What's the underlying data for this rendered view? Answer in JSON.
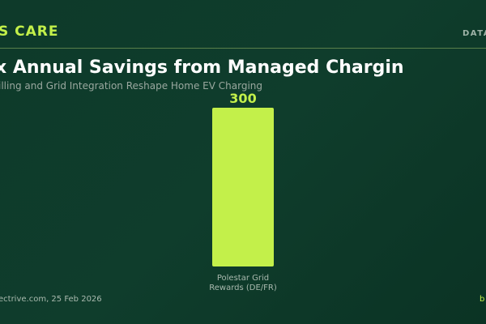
{
  "header": {
    "brand": "S CARE",
    "tag": "DATA"
  },
  "chart_data": {
    "type": "bar",
    "title": "x Annual Savings from Managed Chargin",
    "subtitle": "illing and Grid Integration Reshape Home EV Charging",
    "categories": [
      "Polestar Grid Rewards (DE/FR)"
    ],
    "category_lines": [
      [
        "Polestar Grid",
        "Rewards (DE/FR)"
      ]
    ],
    "values": [
      300
    ],
    "value_labels": [
      "300"
    ],
    "ylim": [
      0,
      300
    ],
    "grid": false,
    "legend": "none",
    "bar_color": "#c3f04a"
  },
  "footer": {
    "source": "ectrive.com, 25 Feb 2026",
    "right": "b"
  }
}
